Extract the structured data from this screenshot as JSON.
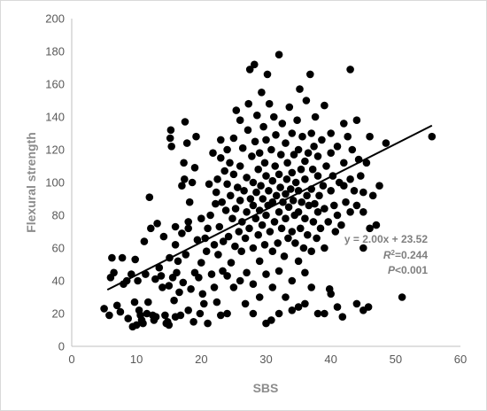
{
  "chart_data": {
    "type": "scatter",
    "title": "",
    "xlabel": "SBS",
    "ylabel": "Flexural strength",
    "xlim": [
      0,
      60
    ],
    "ylim": [
      0,
      200
    ],
    "xticks": [
      "0",
      "10",
      "20",
      "30",
      "40",
      "50",
      "60"
    ],
    "yticks": [
      "0",
      "20",
      "40",
      "60",
      "80",
      "100",
      "120",
      "140",
      "160",
      "180",
      "200"
    ],
    "grid": false,
    "legend": "none",
    "point_color": "#000000",
    "trendline": {
      "slope": 2.0,
      "intercept": 23.52,
      "x_range": [
        5.5,
        55.6
      ],
      "color": "#000000"
    },
    "annotations": {
      "equation": "y = 2.00x + 23.52",
      "r2_prefix": "R",
      "r2_sup": "2",
      "r2_value": "=0.244",
      "p_italic": "P",
      "p_value": "<0.001"
    },
    "points": [
      [
        5,
        23
      ],
      [
        5.8,
        19
      ],
      [
        6,
        42
      ],
      [
        6.2,
        54
      ],
      [
        6.5,
        45
      ],
      [
        7,
        25
      ],
      [
        7.5,
        21
      ],
      [
        7.8,
        54
      ],
      [
        8,
        38
      ],
      [
        8.5,
        40
      ],
      [
        8.7,
        17
      ],
      [
        9.2,
        44
      ],
      [
        9.4,
        12
      ],
      [
        9.7,
        27
      ],
      [
        9.8,
        53
      ],
      [
        10,
        13
      ],
      [
        10.2,
        40
      ],
      [
        10.4,
        22
      ],
      [
        10.6,
        19
      ],
      [
        10.8,
        16
      ],
      [
        11,
        14
      ],
      [
        11.2,
        64
      ],
      [
        11.4,
        44
      ],
      [
        11.6,
        20
      ],
      [
        11.8,
        27
      ],
      [
        12,
        91
      ],
      [
        12.2,
        72
      ],
      [
        12.5,
        19
      ],
      [
        12.7,
        16
      ],
      [
        12.9,
        41
      ],
      [
        13,
        18
      ],
      [
        13.2,
        75
      ],
      [
        13.5,
        48
      ],
      [
        13.8,
        43
      ],
      [
        14,
        36
      ],
      [
        14.2,
        67
      ],
      [
        14.4,
        19
      ],
      [
        14.6,
        14
      ],
      [
        14.8,
        15
      ],
      [
        15,
        13
      ],
      [
        15,
        37
      ],
      [
        15.1,
        54
      ],
      [
        15.2,
        127
      ],
      [
        15.3,
        132
      ],
      [
        15.4,
        122
      ],
      [
        15.6,
        42
      ],
      [
        15.8,
        28
      ],
      [
        16,
        18
      ],
      [
        16,
        62
      ],
      [
        16,
        73
      ],
      [
        16.2,
        45
      ],
      [
        16.4,
        52
      ],
      [
        16.6,
        33
      ],
      [
        16.8,
        19
      ],
      [
        17,
        69
      ],
      [
        17,
        98
      ],
      [
        17.2,
        39
      ],
      [
        17.3,
        112
      ],
      [
        17.4,
        102
      ],
      [
        17.5,
        137
      ],
      [
        17.6,
        56
      ],
      [
        17.8,
        124
      ],
      [
        18,
        22
      ],
      [
        18,
        72
      ],
      [
        18,
        76
      ],
      [
        18.2,
        88
      ],
      [
        18.4,
        35
      ],
      [
        18.6,
        100
      ],
      [
        18.8,
        15
      ],
      [
        19,
        45
      ],
      [
        19,
        109
      ],
      [
        19.2,
        128
      ],
      [
        19.4,
        65
      ],
      [
        19.6,
        42
      ],
      [
        19.8,
        20
      ],
      [
        20,
        51
      ],
      [
        20,
        78
      ],
      [
        20.2,
        32
      ],
      [
        20.4,
        26
      ],
      [
        20.6,
        66
      ],
      [
        20.8,
        58
      ],
      [
        21,
        14
      ],
      [
        21,
        72
      ],
      [
        21.2,
        99
      ],
      [
        21.4,
        80
      ],
      [
        21.6,
        44
      ],
      [
        21.8,
        118
      ],
      [
        22,
        62
      ],
      [
        22,
        36
      ],
      [
        22.2,
        87
      ],
      [
        22.3,
        94
      ],
      [
        22.4,
        27
      ],
      [
        22.5,
        102
      ],
      [
        22.6,
        56
      ],
      [
        22.8,
        73
      ],
      [
        23,
        19
      ],
      [
        23,
        126
      ],
      [
        23,
        115
      ],
      [
        23.2,
        88
      ],
      [
        23.3,
        46
      ],
      [
        23.4,
        64
      ],
      [
        23.6,
        107
      ],
      [
        23.8,
        83
      ],
      [
        24,
        20
      ],
      [
        24,
        43
      ],
      [
        24,
        99
      ],
      [
        24,
        120
      ],
      [
        24.2,
        67
      ],
      [
        24.4,
        112
      ],
      [
        24.5,
        92
      ],
      [
        24.6,
        51
      ],
      [
        24.8,
        78
      ],
      [
        25,
        36
      ],
      [
        25,
        105
      ],
      [
        25,
        127
      ],
      [
        25.2,
        61
      ],
      [
        25.3,
        84
      ],
      [
        25.4,
        144
      ],
      [
        25.6,
        97
      ],
      [
        25.8,
        70
      ],
      [
        26,
        40
      ],
      [
        26,
        89
      ],
      [
        26,
        110
      ],
      [
        26,
        138
      ],
      [
        26.2,
        58
      ],
      [
        26.3,
        76
      ],
      [
        26.4,
        121
      ],
      [
        26.6,
        95
      ],
      [
        26.8,
        26
      ],
      [
        26.8,
        66
      ],
      [
        27,
        45
      ],
      [
        27,
        82
      ],
      [
        27,
        103
      ],
      [
        27.2,
        132
      ],
      [
        27.3,
        148
      ],
      [
        27.4,
        72
      ],
      [
        27.5,
        169
      ],
      [
        27.6,
        90
      ],
      [
        27.8,
        116
      ],
      [
        28,
        20
      ],
      [
        28,
        38
      ],
      [
        28,
        60
      ],
      [
        28,
        86
      ],
      [
        28,
        100
      ],
      [
        28.2,
        172
      ],
      [
        28.3,
        125
      ],
      [
        28.4,
        78
      ],
      [
        28.5,
        94
      ],
      [
        28.6,
        141
      ],
      [
        28.8,
        68
      ],
      [
        28.8,
        108
      ],
      [
        29,
        30
      ],
      [
        29,
        52
      ],
      [
        29,
        83
      ],
      [
        29,
        118
      ],
      [
        29.2,
        98
      ],
      [
        29.3,
        155
      ],
      [
        29.4,
        74
      ],
      [
        29.5,
        90
      ],
      [
        29.6,
        134
      ],
      [
        29.8,
        62
      ],
      [
        29.8,
        112
      ],
      [
        30,
        14
      ],
      [
        30,
        44
      ],
      [
        30,
        80
      ],
      [
        30,
        104
      ],
      [
        30,
        126
      ],
      [
        30.2,
        166
      ],
      [
        30.3,
        86
      ],
      [
        30.4,
        95
      ],
      [
        30.5,
        148
      ],
      [
        30.6,
        70
      ],
      [
        30.8,
        120
      ],
      [
        30.8,
        16
      ],
      [
        31,
        36
      ],
      [
        31,
        58
      ],
      [
        31,
        88
      ],
      [
        31,
        101
      ],
      [
        31.2,
        140
      ],
      [
        31.3,
        76
      ],
      [
        31.4,
        110
      ],
      [
        31.5,
        129
      ],
      [
        31.6,
        92
      ],
      [
        31.8,
        63
      ],
      [
        32,
        20
      ],
      [
        32,
        46
      ],
      [
        32,
        82
      ],
      [
        32,
        105
      ],
      [
        32,
        178
      ],
      [
        32.2,
        97
      ],
      [
        32.3,
        117
      ],
      [
        32.4,
        72
      ],
      [
        32.5,
        136
      ],
      [
        32.6,
        88
      ],
      [
        32.8,
        55
      ],
      [
        33,
        30
      ],
      [
        33,
        78
      ],
      [
        33,
        93
      ],
      [
        33,
        124
      ],
      [
        33.2,
        102
      ],
      [
        33.3,
        112
      ],
      [
        33.4,
        66
      ],
      [
        33.5,
        85
      ],
      [
        33.6,
        146
      ],
      [
        33.8,
        96
      ],
      [
        34,
        22
      ],
      [
        34,
        40
      ],
      [
        34,
        70
      ],
      [
        34,
        106
      ],
      [
        34,
        130
      ],
      [
        34.2,
        89
      ],
      [
        34.3,
        117
      ],
      [
        34.4,
        80
      ],
      [
        34.5,
        63
      ],
      [
        34.6,
        100
      ],
      [
        34.8,
        138
      ],
      [
        35,
        24
      ],
      [
        35,
        52
      ],
      [
        35,
        82
      ],
      [
        35,
        95
      ],
      [
        35,
        120
      ],
      [
        35.2,
        157
      ],
      [
        35.3,
        72
      ],
      [
        35.4,
        108
      ],
      [
        35.5,
        88
      ],
      [
        35.6,
        128
      ],
      [
        35.8,
        60
      ],
      [
        36,
        26
      ],
      [
        36,
        45
      ],
      [
        36,
        78
      ],
      [
        36,
        102
      ],
      [
        36,
        113
      ],
      [
        36.2,
        150
      ],
      [
        36.3,
        92
      ],
      [
        36.4,
        68
      ],
      [
        36.5,
        118
      ],
      [
        36.6,
        86
      ],
      [
        36.8,
        166
      ],
      [
        37,
        36
      ],
      [
        37,
        58
      ],
      [
        37,
        96
      ],
      [
        37,
        130
      ],
      [
        37.2,
        108
      ],
      [
        37.3,
        76
      ],
      [
        37.4,
        122
      ],
      [
        37.5,
        87
      ],
      [
        37.6,
        140
      ],
      [
        37.8,
        66
      ],
      [
        38,
        20
      ],
      [
        38,
        82
      ],
      [
        38,
        104
      ],
      [
        38,
        116
      ],
      [
        38.2,
        92
      ],
      [
        38.4,
        72
      ],
      [
        38.6,
        126
      ],
      [
        38.8,
        98
      ],
      [
        39,
        20
      ],
      [
        39,
        60
      ],
      [
        39,
        84
      ],
      [
        39,
        147
      ],
      [
        39.3,
        110
      ],
      [
        39.6,
        76
      ],
      [
        39.8,
        35
      ],
      [
        40,
        32
      ],
      [
        40,
        95
      ],
      [
        40,
        118
      ],
      [
        40,
        130
      ],
      [
        40.3,
        104
      ],
      [
        40.5,
        86
      ],
      [
        40.7,
        70
      ],
      [
        41,
        24
      ],
      [
        41,
        80
      ],
      [
        41,
        122
      ],
      [
        41.3,
        100
      ],
      [
        41.6,
        74
      ],
      [
        41.8,
        18
      ],
      [
        42,
        98
      ],
      [
        42,
        112
      ],
      [
        42,
        136
      ],
      [
        42.3,
        88
      ],
      [
        42.6,
        128
      ],
      [
        43,
        82
      ],
      [
        43,
        102
      ],
      [
        43,
        169
      ],
      [
        43.3,
        120
      ],
      [
        43.6,
        95
      ],
      [
        44,
        26
      ],
      [
        44,
        86
      ],
      [
        44,
        138
      ],
      [
        44.3,
        114
      ],
      [
        44.6,
        104
      ],
      [
        45,
        22
      ],
      [
        45,
        60
      ],
      [
        45,
        82
      ],
      [
        45,
        94
      ],
      [
        45.5,
        112
      ],
      [
        45.8,
        24
      ],
      [
        46,
        128
      ],
      [
        46,
        72
      ],
      [
        46.5,
        92
      ],
      [
        47,
        74
      ],
      [
        47.5,
        98
      ],
      [
        48.5,
        124
      ],
      [
        51,
        30
      ],
      [
        55.6,
        128
      ]
    ]
  }
}
